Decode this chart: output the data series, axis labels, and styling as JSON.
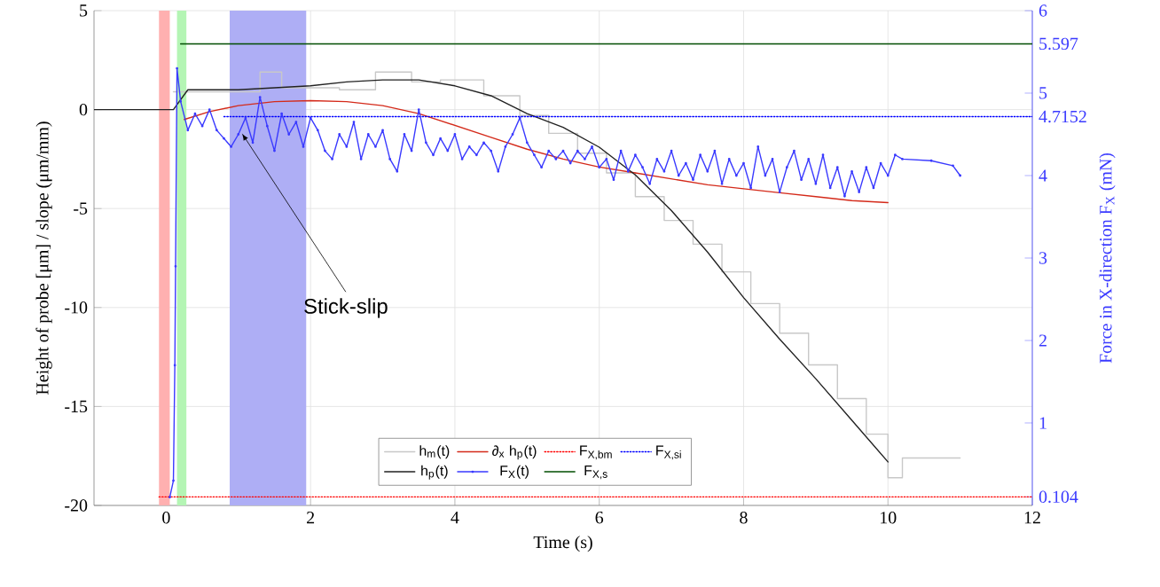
{
  "chart_data": {
    "type": "line",
    "xlabel": "Time (s)",
    "ylabel": "Height of probe [μm] / slope (μm/mm)",
    "y2label": "Force in X-direction F$_{X}$ (mN)",
    "xlim": [
      -1,
      12
    ],
    "xticks": [
      0,
      2,
      4,
      6,
      8,
      10,
      12
    ],
    "ylim": [
      -20,
      5
    ],
    "yticks": [
      -20,
      -15,
      -10,
      -5,
      0,
      5
    ],
    "y2lim": [
      0,
      6
    ],
    "y2ticks": [
      0.104,
      1,
      2,
      3,
      4,
      4.7152,
      5,
      5.597,
      6
    ],
    "grid": true,
    "legend": "bottom",
    "bands": [
      {
        "axis": "x",
        "from": -0.1,
        "to": 0.05,
        "color": "#ffb0b0"
      },
      {
        "axis": "x",
        "from": 0.15,
        "to": 0.28,
        "color": "#b4f5b4"
      },
      {
        "axis": "x",
        "from": 0.88,
        "to": 1.94,
        "color": "#aeaef5"
      }
    ],
    "annotations": [
      {
        "text": "Stick-slip",
        "x": 1.05,
        "y": -1.2
      }
    ],
    "series": [
      {
        "name": "h$_{m}$(t)",
        "type": "step",
        "color": "#c8c8c8",
        "axis": "y",
        "x": [
          0.1,
          1.3,
          1.6,
          2.4,
          2.9,
          3.4,
          3.8,
          4.4,
          4.9,
          5.3,
          5.7,
          6.1,
          6.5,
          6.9,
          7.3,
          7.7,
          8.1,
          8.5,
          8.9,
          9.3,
          9.7,
          10.0,
          10.2,
          11.0
        ],
        "values": [
          0.9,
          1.9,
          1.1,
          1.0,
          1.9,
          1.4,
          1.5,
          0.7,
          -0.3,
          -1.2,
          -2.2,
          -3.2,
          -4.4,
          -5.6,
          -6.8,
          -8.2,
          -9.8,
          -11.3,
          -12.9,
          -14.6,
          -16.4,
          -18.6,
          -17.6,
          -17.6
        ]
      },
      {
        "name": "∂$_{x}$ h$_{p}$(t)",
        "color": "#d42a1a",
        "axis": "y",
        "x": [
          0.25,
          0.6,
          1.0,
          1.5,
          2.0,
          2.5,
          3.0,
          3.5,
          4.0,
          4.5,
          5.0,
          5.5,
          6.0,
          6.5,
          7.0,
          7.5,
          8.0,
          8.5,
          9.0,
          9.5,
          10.0
        ],
        "values": [
          -0.5,
          -0.1,
          0.2,
          0.4,
          0.45,
          0.4,
          0.2,
          -0.2,
          -0.8,
          -1.4,
          -2.0,
          -2.5,
          -2.9,
          -3.2,
          -3.5,
          -3.8,
          -4.0,
          -4.2,
          -4.4,
          -4.6,
          -4.7
        ]
      },
      {
        "name": "F$_{X,bm}$",
        "line_style": "dotted",
        "color": "#ff0000",
        "axis": "y2",
        "x": [
          -0.1,
          12
        ],
        "values": [
          0.104,
          0.104
        ]
      },
      {
        "name": "F$_{X,si}$",
        "line_style": "dotted",
        "color": "#0000ff",
        "axis": "y2",
        "x": [
          0.8,
          12
        ],
        "values": [
          4.7152,
          4.7152
        ]
      },
      {
        "name": "h$_{p}$(t)",
        "color": "#222222",
        "axis": "y",
        "x": [
          -1,
          0.1,
          0.3,
          0.6,
          1.0,
          1.5,
          2.0,
          2.5,
          3.0,
          3.5,
          4.0,
          4.5,
          5.0,
          5.5,
          6.0,
          6.5,
          7.0,
          7.5,
          8.0,
          8.5,
          9.0,
          9.5,
          10.0
        ],
        "values": [
          0,
          0,
          1.0,
          1.0,
          1.0,
          1.1,
          1.2,
          1.4,
          1.5,
          1.5,
          1.2,
          0.7,
          -0.2,
          -0.9,
          -1.9,
          -3.3,
          -5.1,
          -7.2,
          -9.5,
          -11.6,
          -13.6,
          -15.7,
          -17.8
        ]
      },
      {
        "name": "F$_{X}$(t)",
        "marker": "circle",
        "color": "#3a3aff",
        "axis": "y2",
        "x": [
          0.05,
          0.1,
          0.12,
          0.13,
          0.15,
          0.2,
          0.3,
          0.4,
          0.5,
          0.6,
          0.7,
          0.8,
          0.9,
          1.0,
          1.1,
          1.2,
          1.3,
          1.4,
          1.5,
          1.6,
          1.7,
          1.8,
          1.9,
          2.0,
          2.1,
          2.2,
          2.3,
          2.4,
          2.5,
          2.6,
          2.7,
          2.8,
          2.9,
          3.0,
          3.1,
          3.2,
          3.3,
          3.4,
          3.5,
          3.6,
          3.7,
          3.8,
          3.9,
          4.0,
          4.1,
          4.2,
          4.3,
          4.4,
          4.5,
          4.6,
          4.7,
          4.8,
          4.9,
          5.0,
          5.1,
          5.2,
          5.3,
          5.4,
          5.5,
          5.6,
          5.7,
          5.8,
          5.9,
          6.0,
          6.1,
          6.2,
          6.3,
          6.4,
          6.5,
          6.6,
          6.7,
          6.8,
          6.9,
          7.0,
          7.1,
          7.2,
          7.3,
          7.4,
          7.5,
          7.6,
          7.7,
          7.8,
          7.9,
          8.0,
          8.1,
          8.2,
          8.3,
          8.4,
          8.5,
          8.6,
          8.7,
          8.8,
          8.9,
          9.0,
          9.1,
          9.2,
          9.3,
          9.4,
          9.5,
          9.6,
          9.7,
          9.8,
          9.9,
          10.0,
          10.1,
          10.2,
          10.6,
          10.9,
          11.0
        ],
        "values": [
          0.1,
          0.3,
          1.7,
          2.9,
          5.3,
          4.9,
          4.55,
          4.75,
          4.6,
          4.8,
          4.55,
          4.45,
          4.35,
          4.5,
          4.7,
          4.4,
          4.95,
          4.6,
          4.3,
          4.75,
          4.5,
          4.65,
          4.35,
          4.7,
          4.55,
          4.3,
          4.2,
          4.5,
          4.35,
          4.65,
          4.2,
          4.5,
          4.35,
          4.55,
          4.2,
          4.05,
          4.5,
          4.3,
          4.8,
          4.4,
          4.25,
          4.45,
          4.3,
          4.5,
          4.2,
          4.35,
          4.25,
          4.4,
          4.3,
          4.05,
          4.35,
          4.5,
          4.7,
          4.4,
          4.25,
          4.1,
          4.3,
          4.2,
          4.3,
          4.15,
          4.3,
          4.2,
          4.35,
          4.1,
          4.2,
          3.95,
          4.3,
          4.05,
          4.25,
          4.1,
          3.9,
          4.2,
          4.05,
          4.3,
          4.0,
          4.15,
          3.95,
          4.25,
          4.05,
          4.3,
          3.9,
          4.2,
          4.0,
          4.15,
          3.85,
          4.35,
          4.0,
          4.2,
          3.8,
          4.1,
          4.3,
          3.95,
          4.2,
          3.9,
          4.25,
          3.85,
          4.1,
          3.75,
          4.05,
          3.8,
          4.1,
          3.85,
          4.15,
          4.0,
          4.25,
          4.2,
          4.18,
          4.12,
          4.0
        ]
      },
      {
        "name": "F$_{X,s}$",
        "color": "#004d00",
        "axis": "y2",
        "x": [
          0.2,
          12
        ],
        "values": [
          5.597,
          5.597
        ]
      }
    ]
  }
}
